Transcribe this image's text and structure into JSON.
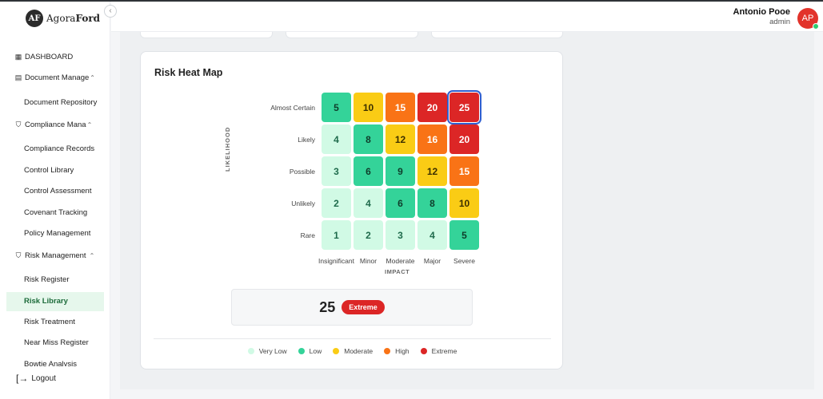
{
  "brand": {
    "mark": "AF",
    "name_light": "Agora",
    "name_bold": "Ford"
  },
  "user": {
    "name": "Antonio Pooe",
    "role": "admin",
    "initials": "AP"
  },
  "sidebar": {
    "dashboard": "DASHBOARD",
    "document_management": "Document Manage",
    "document_repository": "Document Repository",
    "compliance_management": "Compliance Mana",
    "compliance_records": "Compliance Records",
    "control_library": "Control Library",
    "control_assessment": "Control Assessment",
    "covenant_tracking": "Covenant Tracking",
    "policy_management": "Policy Management",
    "risk_management": "Risk Management",
    "risk_register": "Risk Register",
    "risk_library": "Risk Library",
    "risk_treatment": "Risk Treatment",
    "near_miss_register": "Near Miss Register",
    "bowtie_analysis": "Bowtie Analysis",
    "logout": "Logout"
  },
  "heatmap": {
    "title": "Risk Heat Map",
    "y_axis_label": "LIKELIHOOD",
    "x_axis_label": "IMPACT",
    "rows": [
      {
        "label": "Almost Certain",
        "cells": [
          5,
          10,
          15,
          20,
          25
        ],
        "levels": [
          "low",
          "moderate",
          "high",
          "extreme",
          "extreme"
        ]
      },
      {
        "label": "Likely",
        "cells": [
          4,
          8,
          12,
          16,
          20
        ],
        "levels": [
          "very_low",
          "low",
          "moderate",
          "high",
          "extreme"
        ]
      },
      {
        "label": "Possible",
        "cells": [
          3,
          6,
          9,
          12,
          15
        ],
        "levels": [
          "very_low",
          "low",
          "low",
          "moderate",
          "high"
        ]
      },
      {
        "label": "Unlikely",
        "cells": [
          2,
          4,
          6,
          8,
          10
        ],
        "levels": [
          "very_low",
          "very_low",
          "low",
          "low",
          "moderate"
        ]
      },
      {
        "label": "Rare",
        "cells": [
          1,
          2,
          3,
          4,
          5
        ],
        "levels": [
          "very_low",
          "very_low",
          "very_low",
          "very_low",
          "low"
        ]
      }
    ],
    "columns": [
      "Insignificant",
      "Minor",
      "Moderate",
      "Major",
      "Severe"
    ],
    "selected": {
      "row": 0,
      "col": 4
    },
    "score": {
      "value": "25",
      "label": "Extreme"
    },
    "legend": [
      {
        "key": "very_low",
        "label": "Very Low"
      },
      {
        "key": "low",
        "label": "Low"
      },
      {
        "key": "moderate",
        "label": "Moderate"
      },
      {
        "key": "high",
        "label": "High"
      },
      {
        "key": "extreme",
        "label": "Extreme"
      }
    ],
    "colors": {
      "very_low": {
        "bg": "#d1fae5",
        "fg": "#1f6b4c",
        "dot": "#d1fae5"
      },
      "low": {
        "bg": "#34d399",
        "fg": "#0f3d2b",
        "dot": "#34d399"
      },
      "moderate": {
        "bg": "#facc15",
        "fg": "#3b2f00",
        "dot": "#facc15"
      },
      "high": {
        "bg": "#f97316",
        "fg": "#ffffff",
        "dot": "#f97316"
      },
      "extreme": {
        "bg": "#dc2626",
        "fg": "#ffffff",
        "dot": "#dc2626"
      }
    }
  }
}
